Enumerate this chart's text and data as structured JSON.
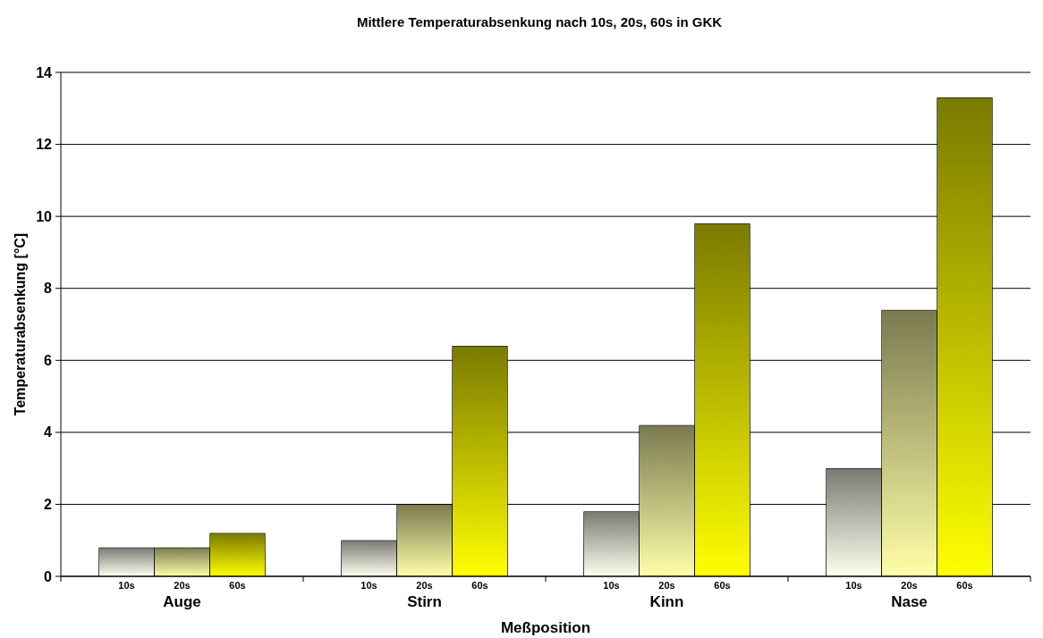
{
  "chart_data": {
    "type": "bar",
    "title": "Mittlere Temperaturabsenkung nach 10s, 20s, 60s in GKK",
    "xlabel": "Meßposition",
    "ylabel": "Temperaturabsenkung [°C]",
    "categories": [
      "Auge",
      "Stirn",
      "Kinn",
      "Nase"
    ],
    "series": [
      {
        "name": "10s",
        "color": "#fffff0",
        "values": [
          0.8,
          1.0,
          1.8,
          3.0
        ]
      },
      {
        "name": "20s",
        "color": "#ffffa8",
        "values": [
          0.8,
          2.0,
          4.2,
          7.4
        ]
      },
      {
        "name": "60s",
        "color": "#ffff00",
        "values": [
          1.2,
          6.4,
          9.8,
          13.3
        ]
      }
    ],
    "ylim": [
      0,
      14
    ],
    "yticks": [
      0,
      2,
      4,
      6,
      8,
      10,
      12,
      14
    ],
    "grid": "y",
    "legend": false
  }
}
